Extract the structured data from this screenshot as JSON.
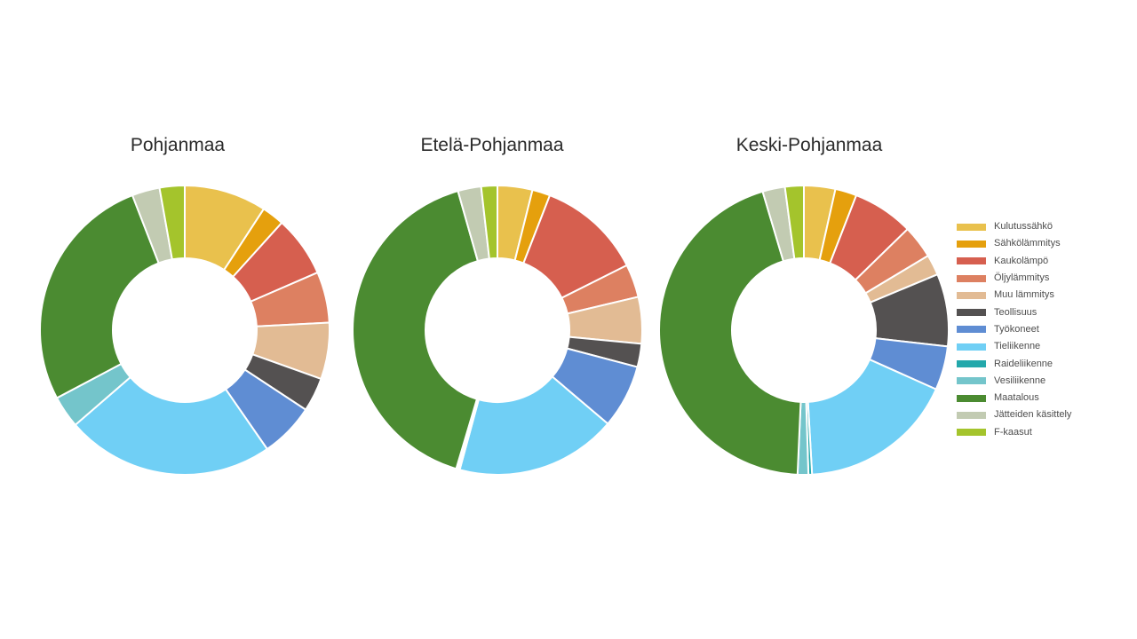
{
  "page": {
    "background": "#ffffff"
  },
  "titles": {
    "chart1": "Pohjanmaa",
    "chart2": "Etelä-Pohjanmaa",
    "chart3": "Keski-Pohjanmaa"
  },
  "chart_data": {
    "type": "pie",
    "subtype": "donut",
    "legend_position": "right",
    "start_angle_deg": 0,
    "direction": "clockwise",
    "categories": [
      "Kulutussähkö",
      "Sähkölämmitys",
      "Kaukolämpö",
      "Öljylämmitys",
      "Muu lämmitys",
      "Teollisuus",
      "Työkoneet",
      "Tieliikenne",
      "Raideliikenne",
      "Vesiliikenne",
      "Maatalous",
      "Jätteiden käsittely",
      "F-kaasut"
    ],
    "colors": [
      "#e9c14d",
      "#e5a00d",
      "#d65f4f",
      "#dd8061",
      "#e2bb94",
      "#545151",
      "#5f8dd3",
      "#70cff5",
      "#23a8ab",
      "#74c5cb",
      "#4b8b31",
      "#c2cbb2",
      "#a4c42c"
    ],
    "units": "percent share (estimated from slice angles)",
    "charts": [
      {
        "title": "Pohjanmaa",
        "values": [
          9.2,
          2.5,
          6.8,
          5.7,
          6.3,
          3.8,
          6.1,
          23.3,
          0.0,
          3.6,
          26.9,
          3.1,
          2.8
        ]
      },
      {
        "title": "Etelä-Pohjanmaa",
        "values": [
          3.9,
          2.0,
          11.7,
          3.7,
          5.2,
          2.6,
          7.1,
          18.0,
          0.2,
          0.2,
          41.0,
          2.6,
          1.8
        ]
      },
      {
        "title": "Keski-Pohjanmaa",
        "values": [
          3.5,
          2.4,
          6.8,
          3.7,
          2.3,
          8.1,
          4.9,
          17.4,
          0.4,
          1.2,
          44.7,
          2.5,
          2.1
        ]
      }
    ]
  },
  "legend": {
    "items": [
      "Kulutussähkö",
      "Sähkölämmitys",
      "Kaukolämpö",
      "Öljylämmitys",
      "Muu lämmitys",
      "Teollisuus",
      "Työkoneet",
      "Tieliikenne",
      "Raideliikenne",
      "Vesiliikenne",
      "Maatalous",
      "Jätteiden käsittely",
      "F-kaasut"
    ]
  }
}
